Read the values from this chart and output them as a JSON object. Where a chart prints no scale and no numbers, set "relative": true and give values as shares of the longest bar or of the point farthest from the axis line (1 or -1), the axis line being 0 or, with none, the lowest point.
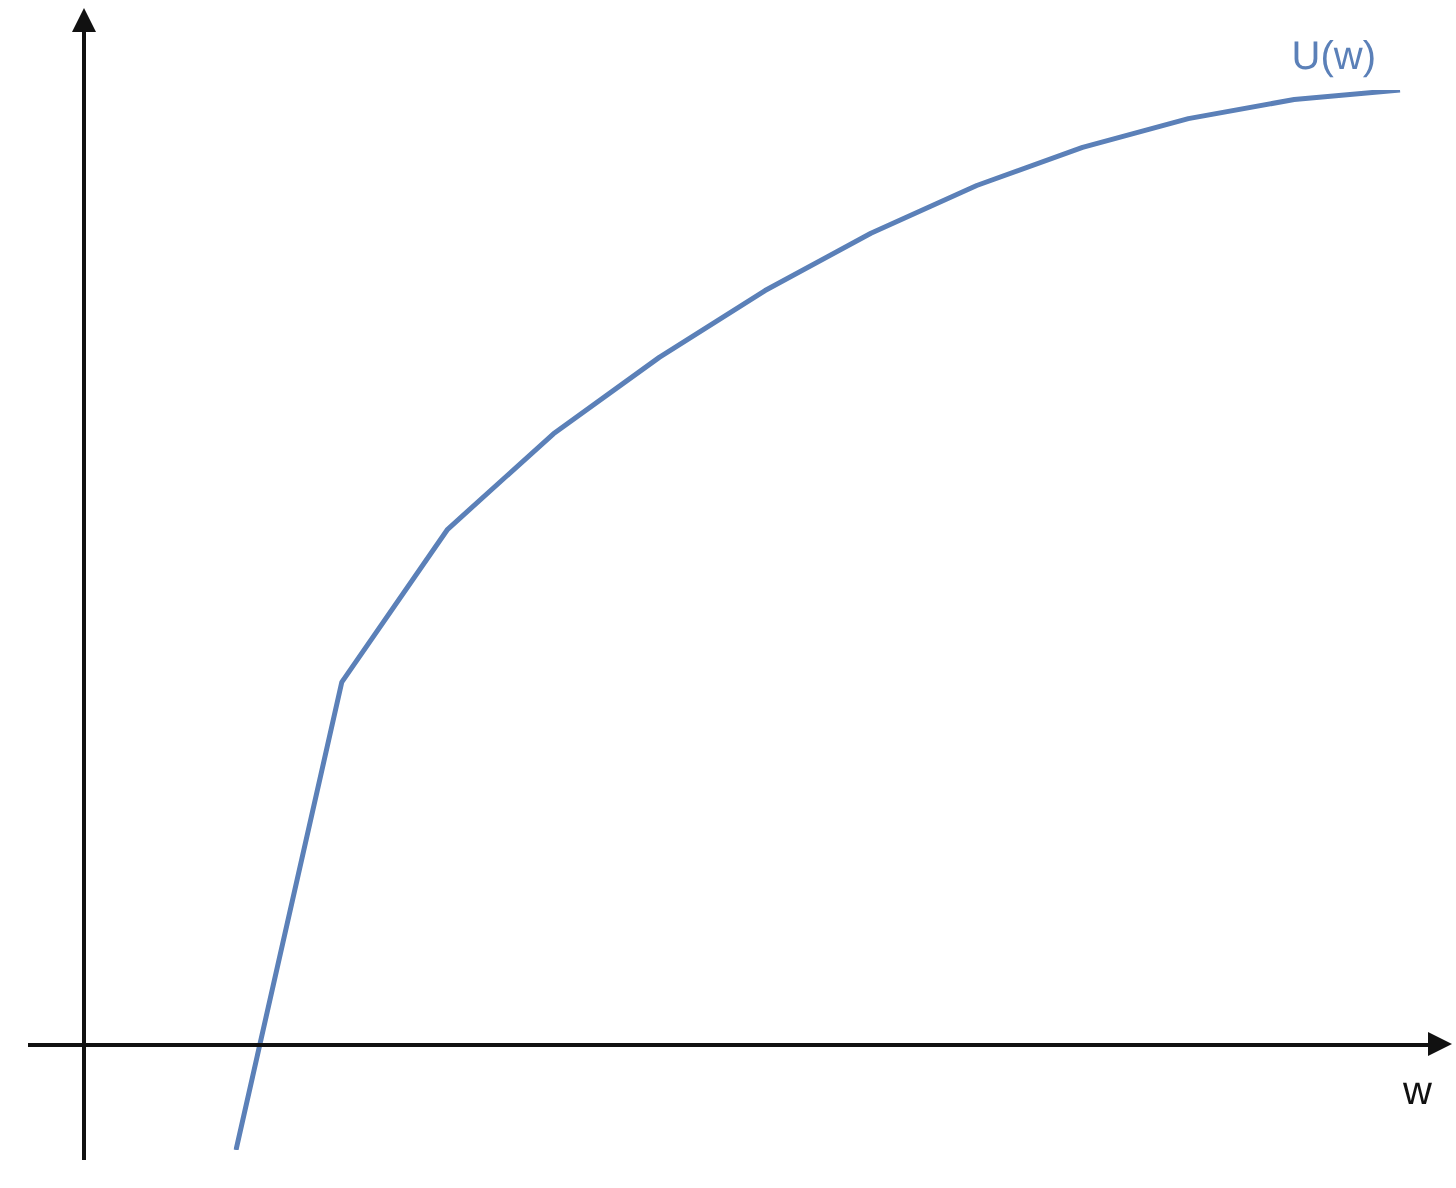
{
  "chart_data": {
    "type": "line",
    "xlabel": "w",
    "relative": true,
    "marker": "none",
    "categories": [
      null,
      null,
      null,
      null,
      null,
      null,
      null,
      null,
      null,
      null,
      null,
      null
    ],
    "series": [
      {
        "name": "U(w)",
        "color": "#5b80b8",
        "values": [
          -0.11,
          0.38,
          0.54,
          0.64,
          0.72,
          0.79,
          0.85,
          0.9,
          0.94,
          0.97,
          0.99,
          1
        ]
      }
    ]
  }
}
